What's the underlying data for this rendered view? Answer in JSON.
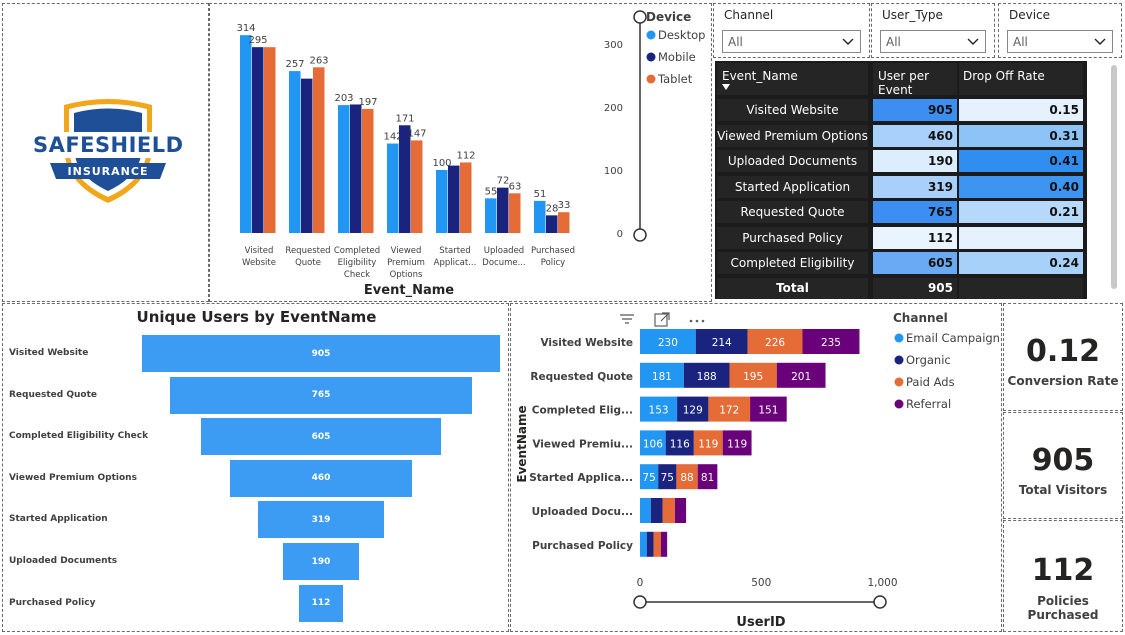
{
  "logo": {
    "brand_top": "SAFESHIELD",
    "brand_bottom": "INSURANCE"
  },
  "colors": {
    "desktop": "#2196f3",
    "mobile": "#1a237e",
    "tablet": "#e66c37",
    "email": "#2196f3",
    "organic": "#1a237e",
    "paid": "#e66c37",
    "referral": "#6b007b",
    "funnel": "#3c9cf4"
  },
  "device_chart": {
    "chart_data": {
      "type": "bar",
      "xlabel": "Event_Name",
      "ylabel": "",
      "ylim": [
        0,
        340
      ],
      "yticks": [
        "0",
        "100",
        "200",
        "300"
      ],
      "categories": [
        "Visited Website",
        "Requested Quote",
        "Completed Eligibility Check",
        "Viewed Premium Options",
        "Started Application",
        "Uploaded Documents",
        "Purchased Policy"
      ],
      "category_lines": [
        [
          "Visited",
          "Website"
        ],
        [
          "Requested",
          "Quote"
        ],
        [
          "Completed",
          "Eligibility",
          "Check"
        ],
        [
          "Viewed",
          "Premium",
          "Options"
        ],
        [
          "Started",
          "Applicat..."
        ],
        [
          "Uploaded",
          "Docume..."
        ],
        [
          "Purchased",
          "Policy"
        ]
      ],
      "series": [
        {
          "name": "Desktop",
          "values": [
            314,
            257,
            203,
            142,
            100,
            55,
            51
          ]
        },
        {
          "name": "Mobile",
          "values": [
            295,
            245,
            204,
            171,
            107,
            72,
            28
          ]
        },
        {
          "name": "Tablet",
          "values": [
            295,
            263,
            197,
            147,
            112,
            63,
            33
          ]
        }
      ],
      "data_labels": [
        [
          "314",
          "257",
          "203",
          "142",
          "100",
          "55",
          "51"
        ],
        [
          "295",
          "",
          "",
          "171",
          "",
          "72",
          "28"
        ],
        [
          "",
          "263",
          "197",
          "147",
          "112",
          "63",
          "33"
        ]
      ],
      "legend_title": "Device",
      "legend_position": "right"
    }
  },
  "slicers": [
    {
      "title": "Channel",
      "value": "All"
    },
    {
      "title": "User_Type",
      "value": "All"
    },
    {
      "title": "Device",
      "value": "All"
    }
  ],
  "table": {
    "headers": [
      "Event_Name",
      "User per Event",
      "Drop Off Rate"
    ],
    "rows": [
      {
        "name": "Visited Website",
        "users": "905",
        "drop": "0.15"
      },
      {
        "name": "Viewed Premium Options",
        "users": "460",
        "drop": "0.31"
      },
      {
        "name": "Uploaded Documents",
        "users": "190",
        "drop": "0.41"
      },
      {
        "name": "Started Application",
        "users": "319",
        "drop": "0.40"
      },
      {
        "name": "Requested Quote",
        "users": "765",
        "drop": "0.21"
      },
      {
        "name": "Purchased Policy",
        "users": "112",
        "drop": ""
      },
      {
        "name": "Completed Eligibility Check",
        "users": "605",
        "drop": "0.24"
      }
    ],
    "total_label": "Total",
    "total_users": "905",
    "users_colors": [
      "#3c8ef0",
      "#a9d0fa",
      "#dceefd",
      "#a9d0fa",
      "#3c8ef0",
      "#eaf4fe",
      "#6aaaf4"
    ],
    "drop_colors": [
      "#e6f1fe",
      "#8ec3f8",
      "#2f8ef0",
      "#3d95f1",
      "#b6d9fb",
      "#e6f1fe",
      "#a8d1fa"
    ]
  },
  "funnel": {
    "title": "Unique Users by EventName",
    "chart_data": {
      "type": "bar",
      "categories": [
        "Visited Website",
        "Requested Quote",
        "Completed Eligibility Check",
        "Viewed Premium Options",
        "Started Application",
        "Uploaded Documents",
        "Purchased Policy"
      ],
      "values": [
        905,
        765,
        605,
        460,
        319,
        190,
        112
      ],
      "labels": [
        "905",
        "765",
        "605",
        "460",
        "319",
        "190",
        "112"
      ]
    }
  },
  "channel_chart": {
    "toolbar": [
      "filter-icon",
      "focus-mode-icon",
      "more-options-icon"
    ],
    "chart_data": {
      "type": "bar",
      "orientation": "horizontal-stacked",
      "xlabel": "UserID",
      "ylabel": "EventName",
      "xlim": [
        0,
        1000
      ],
      "xticks": [
        "0",
        "500",
        "1,000"
      ],
      "categories": [
        "Visited Website",
        "Requested Quote",
        "Completed Elig...",
        "Viewed Premiu...",
        "Started Applica...",
        "Uploaded Docu...",
        "Purchased Policy"
      ],
      "series": [
        {
          "name": "Email Campaign",
          "values": [
            230,
            181,
            153,
            106,
            75,
            45,
            28
          ]
        },
        {
          "name": "Organic",
          "values": [
            214,
            188,
            129,
            116,
            75,
            48,
            28
          ]
        },
        {
          "name": "Paid Ads",
          "values": [
            226,
            195,
            172,
            119,
            88,
            51,
            30
          ]
        },
        {
          "name": "Referral",
          "values": [
            235,
            201,
            151,
            119,
            81,
            46,
            26
          ]
        }
      ],
      "data_labels": [
        [
          "230",
          "181",
          "153",
          "106",
          "75",
          "",
          ""
        ],
        [
          "214",
          "188",
          "129",
          "116",
          "75",
          "",
          ""
        ],
        [
          "226",
          "195",
          "172",
          "119",
          "88",
          "",
          ""
        ],
        [
          "235",
          "201",
          "151",
          "119",
          "81",
          "",
          ""
        ]
      ],
      "legend_title": "Channel",
      "legend_position": "right"
    }
  },
  "kpis": [
    {
      "value": "0.12",
      "label": "Conversion Rate"
    },
    {
      "value": "905",
      "label": "Total Visitors"
    },
    {
      "value": "112",
      "label": "Policies Purchased"
    }
  ]
}
